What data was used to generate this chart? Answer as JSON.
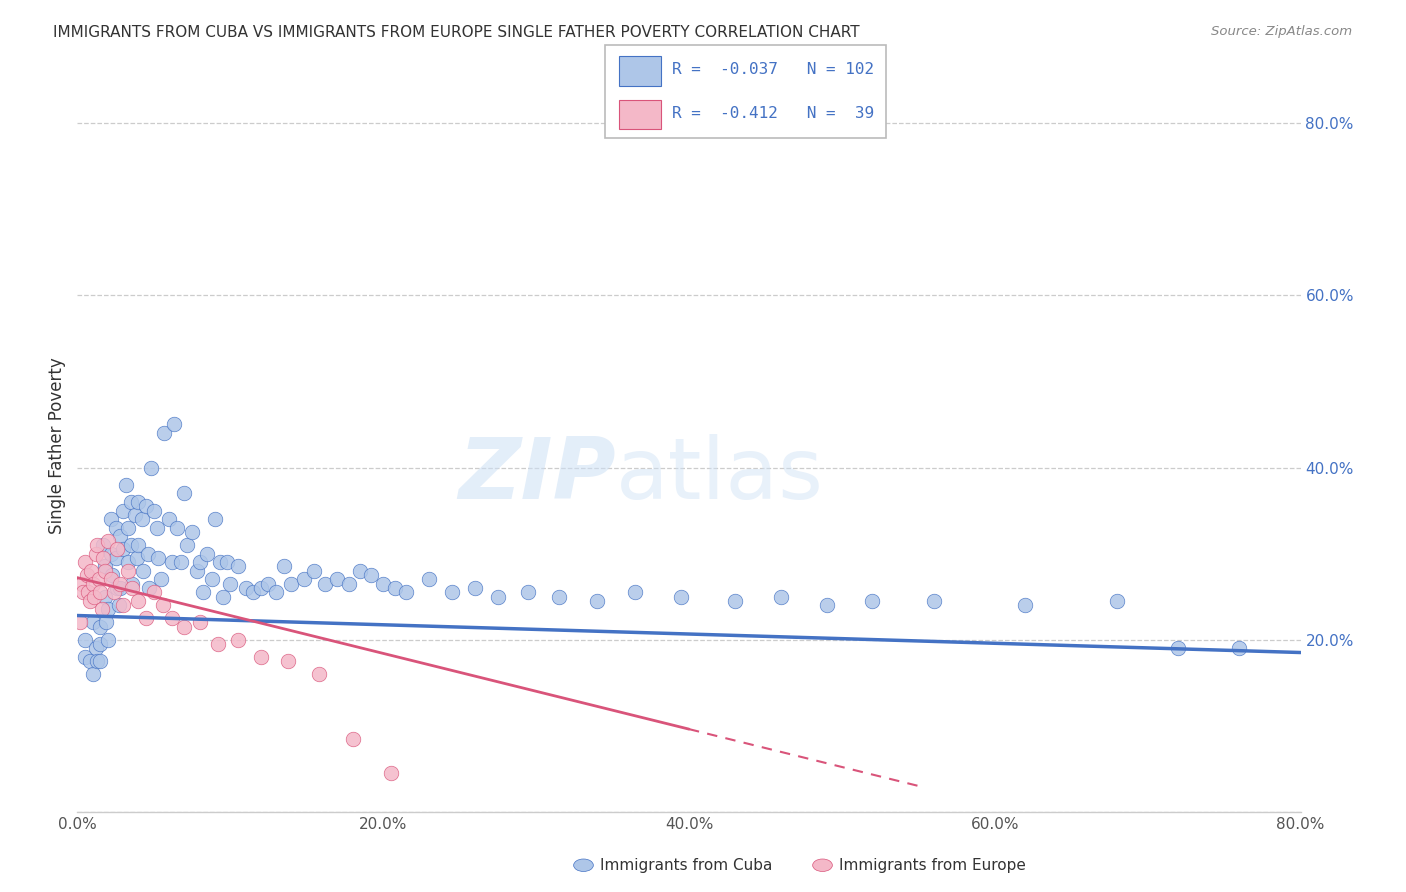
{
  "title": "IMMIGRANTS FROM CUBA VS IMMIGRANTS FROM EUROPE SINGLE FATHER POVERTY CORRELATION CHART",
  "source": "Source: ZipAtlas.com",
  "ylabel": "Single Father Poverty",
  "legend_label1": "Immigrants from Cuba",
  "legend_label2": "Immigrants from Europe",
  "R1": -0.037,
  "N1": 102,
  "R2": -0.412,
  "N2": 39,
  "color_cuba": "#aec6e8",
  "color_europe": "#f4b8c8",
  "line_color_cuba": "#4472c4",
  "line_color_europe": "#d9547a",
  "xmin": 0.0,
  "xmax": 0.8,
  "ymin": 0.0,
  "ymax": 0.85,
  "yticks": [
    0.0,
    0.2,
    0.4,
    0.6,
    0.8
  ],
  "ytick_labels": [
    "",
    "20.0%",
    "40.0%",
    "60.0%",
    "80.0%"
  ],
  "xticks": [
    0.0,
    0.2,
    0.4,
    0.6,
    0.8
  ],
  "xtick_labels": [
    "0.0%",
    "20.0%",
    "40.0%",
    "60.0%",
    "80.0%"
  ],
  "watermark_zip": "ZIP",
  "watermark_atlas": "atlas",
  "cuba_x": [
    0.005,
    0.005,
    0.008,
    0.01,
    0.01,
    0.012,
    0.013,
    0.015,
    0.015,
    0.015,
    0.017,
    0.018,
    0.018,
    0.019,
    0.02,
    0.02,
    0.022,
    0.022,
    0.023,
    0.025,
    0.025,
    0.026,
    0.027,
    0.028,
    0.028,
    0.03,
    0.03,
    0.032,
    0.033,
    0.033,
    0.035,
    0.035,
    0.036,
    0.038,
    0.039,
    0.04,
    0.04,
    0.042,
    0.043,
    0.045,
    0.046,
    0.047,
    0.048,
    0.05,
    0.052,
    0.053,
    0.055,
    0.057,
    0.06,
    0.062,
    0.063,
    0.065,
    0.068,
    0.07,
    0.072,
    0.075,
    0.078,
    0.08,
    0.082,
    0.085,
    0.088,
    0.09,
    0.093,
    0.095,
    0.098,
    0.1,
    0.105,
    0.11,
    0.115,
    0.12,
    0.125,
    0.13,
    0.135,
    0.14,
    0.148,
    0.155,
    0.162,
    0.17,
    0.178,
    0.185,
    0.192,
    0.2,
    0.208,
    0.215,
    0.23,
    0.245,
    0.26,
    0.275,
    0.295,
    0.315,
    0.34,
    0.365,
    0.395,
    0.43,
    0.46,
    0.49,
    0.52,
    0.56,
    0.62,
    0.68,
    0.72,
    0.76
  ],
  "cuba_y": [
    0.18,
    0.2,
    0.175,
    0.22,
    0.16,
    0.19,
    0.175,
    0.215,
    0.195,
    0.175,
    0.31,
    0.285,
    0.25,
    0.22,
    0.235,
    0.2,
    0.34,
    0.3,
    0.275,
    0.33,
    0.295,
    0.26,
    0.24,
    0.32,
    0.26,
    0.35,
    0.305,
    0.38,
    0.33,
    0.29,
    0.36,
    0.31,
    0.265,
    0.345,
    0.295,
    0.36,
    0.31,
    0.34,
    0.28,
    0.355,
    0.3,
    0.26,
    0.4,
    0.35,
    0.33,
    0.295,
    0.27,
    0.44,
    0.34,
    0.29,
    0.45,
    0.33,
    0.29,
    0.37,
    0.31,
    0.325,
    0.28,
    0.29,
    0.255,
    0.3,
    0.27,
    0.34,
    0.29,
    0.25,
    0.29,
    0.265,
    0.285,
    0.26,
    0.255,
    0.26,
    0.265,
    0.255,
    0.285,
    0.265,
    0.27,
    0.28,
    0.265,
    0.27,
    0.265,
    0.28,
    0.275,
    0.265,
    0.26,
    0.255,
    0.27,
    0.255,
    0.26,
    0.25,
    0.255,
    0.25,
    0.245,
    0.255,
    0.25,
    0.245,
    0.25,
    0.24,
    0.245,
    0.245,
    0.24,
    0.245,
    0.19,
    0.19
  ],
  "europe_x": [
    0.002,
    0.003,
    0.004,
    0.005,
    0.006,
    0.007,
    0.008,
    0.009,
    0.01,
    0.011,
    0.012,
    0.013,
    0.014,
    0.015,
    0.016,
    0.017,
    0.018,
    0.02,
    0.022,
    0.024,
    0.026,
    0.028,
    0.03,
    0.033,
    0.036,
    0.04,
    0.045,
    0.05,
    0.056,
    0.062,
    0.07,
    0.08,
    0.092,
    0.105,
    0.12,
    0.138,
    0.158,
    0.18,
    0.205
  ],
  "europe_y": [
    0.22,
    0.265,
    0.255,
    0.29,
    0.275,
    0.255,
    0.245,
    0.28,
    0.265,
    0.25,
    0.3,
    0.31,
    0.27,
    0.255,
    0.235,
    0.295,
    0.28,
    0.315,
    0.27,
    0.255,
    0.305,
    0.265,
    0.24,
    0.28,
    0.26,
    0.245,
    0.225,
    0.255,
    0.24,
    0.225,
    0.215,
    0.22,
    0.195,
    0.2,
    0.18,
    0.175,
    0.16,
    0.085,
    0.045
  ],
  "cuba_line_start_x": 0.0,
  "cuba_line_start_y": 0.228,
  "cuba_line_end_x": 0.8,
  "cuba_line_end_y": 0.185,
  "europe_line_start_x": 0.0,
  "europe_line_start_y": 0.272,
  "europe_line_end_x": 0.55,
  "europe_line_end_y": 0.03
}
